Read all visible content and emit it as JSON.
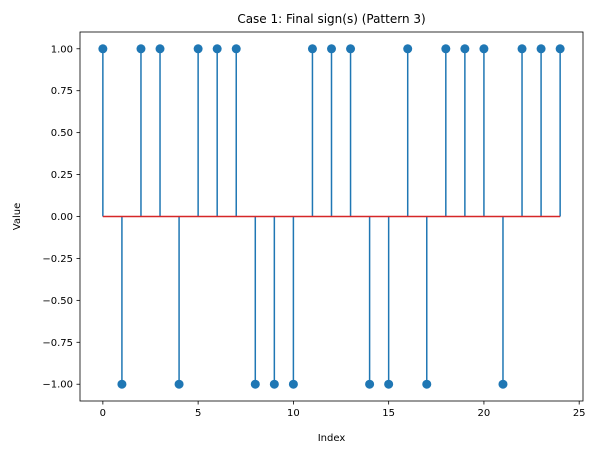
{
  "chart_data": {
    "type": "stem",
    "title": "Case 1: Final sign(s) (Pattern 3)",
    "xlabel": "Index",
    "ylabel": "Value",
    "x": [
      0,
      1,
      2,
      3,
      4,
      5,
      6,
      7,
      8,
      9,
      10,
      11,
      12,
      13,
      14,
      15,
      16,
      17,
      18,
      19,
      20,
      21,
      22,
      23,
      24
    ],
    "values": [
      1,
      -1,
      1,
      1,
      -1,
      1,
      1,
      1,
      -1,
      -1,
      -1,
      1,
      1,
      1,
      -1,
      -1,
      1,
      -1,
      1,
      1,
      1,
      -1,
      1,
      1,
      1
    ],
    "xlim": [
      -1.2,
      25.2
    ],
    "ylim": [
      -1.1,
      1.1
    ],
    "xticks": [
      0,
      5,
      10,
      15,
      20,
      25
    ],
    "yticks": [
      -1.0,
      -0.75,
      -0.5,
      -0.25,
      0.0,
      0.25,
      0.5,
      0.75,
      1.0
    ],
    "xtick_labels": [
      "0",
      "5",
      "10",
      "15",
      "20",
      "25"
    ],
    "ytick_labels": [
      "−1.00",
      "−0.75",
      "−0.50",
      "−0.25",
      "0.00",
      "0.25",
      "0.50",
      "0.75",
      "1.00"
    ],
    "baseline": 0,
    "colors": {
      "stem": "#1f77b4",
      "marker": "#1f77b4",
      "baseline": "#d62728",
      "axes": "#000000"
    },
    "grid": false,
    "legend": "none"
  }
}
